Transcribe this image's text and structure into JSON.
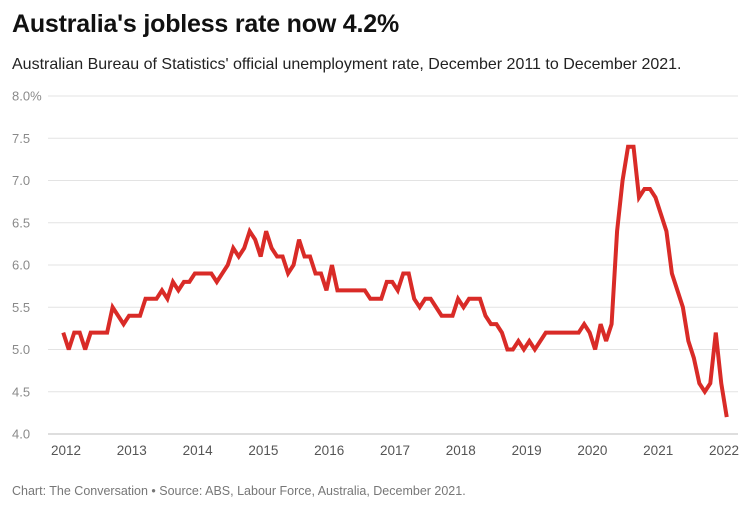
{
  "title": "Australia's jobless rate now 4.2%",
  "subtitle": "Australian Bureau of Statistics' official unemployment rate, December 2011 to December 2021.",
  "footer": "Chart: The Conversation • Source: ABS, Labour Force, Australia, December 2021.",
  "chart_data": {
    "type": "line",
    "title": "Australia's jobless rate now 4.2%",
    "subtitle": "Australian Bureau of Statistics' official unemployment rate, December 2011 to December 2021.",
    "xlabel": "",
    "ylabel": "",
    "xlim": [
      2012,
      2022
    ],
    "ylim": [
      4.0,
      8.0
    ],
    "y_ticks": [
      "4.0",
      "4.5",
      "5.0",
      "5.5",
      "6.0",
      "6.5",
      "7.0",
      "7.5",
      "8.0%"
    ],
    "x_ticks": [
      "2012",
      "2013",
      "2014",
      "2015",
      "2016",
      "2017",
      "2018",
      "2019",
      "2020",
      "2021",
      "2022"
    ],
    "grid": "horizontal",
    "line_color": "#d92b27",
    "series": [
      {
        "x_start": "2011-12",
        "frequency": "monthly",
        "values": [
          5.2,
          5.0,
          5.2,
          5.2,
          5.0,
          5.2,
          5.2,
          5.2,
          5.2,
          5.5,
          5.4,
          5.3,
          5.4,
          5.4,
          5.4,
          5.6,
          5.6,
          5.6,
          5.7,
          5.6,
          5.8,
          5.7,
          5.8,
          5.8,
          5.9,
          5.9,
          5.9,
          5.9,
          5.8,
          5.9,
          6.0,
          6.2,
          6.1,
          6.2,
          6.4,
          6.3,
          6.1,
          6.4,
          6.2,
          6.1,
          6.1,
          5.9,
          6.0,
          6.3,
          6.1,
          6.1,
          5.9,
          5.9,
          5.7,
          6.0,
          5.7,
          5.7,
          5.7,
          5.7,
          5.7,
          5.7,
          5.6,
          5.6,
          5.6,
          5.8,
          5.8,
          5.7,
          5.9,
          5.9,
          5.6,
          5.5,
          5.6,
          5.6,
          5.5,
          5.4,
          5.4,
          5.4,
          5.6,
          5.5,
          5.6,
          5.6,
          5.6,
          5.4,
          5.3,
          5.3,
          5.2,
          5.0,
          5.0,
          5.1,
          5.0,
          5.1,
          5.0,
          5.1,
          5.2,
          5.2,
          5.2,
          5.2,
          5.2,
          5.2,
          5.2,
          5.3,
          5.2,
          5.0,
          5.3,
          5.1,
          5.3,
          6.4,
          7.0,
          7.4,
          7.4,
          6.8,
          6.9,
          6.9,
          6.8,
          6.6,
          6.4,
          5.9,
          5.7,
          5.5,
          5.1,
          4.9,
          4.6,
          4.5,
          4.6,
          5.2,
          4.6,
          4.2
        ]
      }
    ]
  }
}
